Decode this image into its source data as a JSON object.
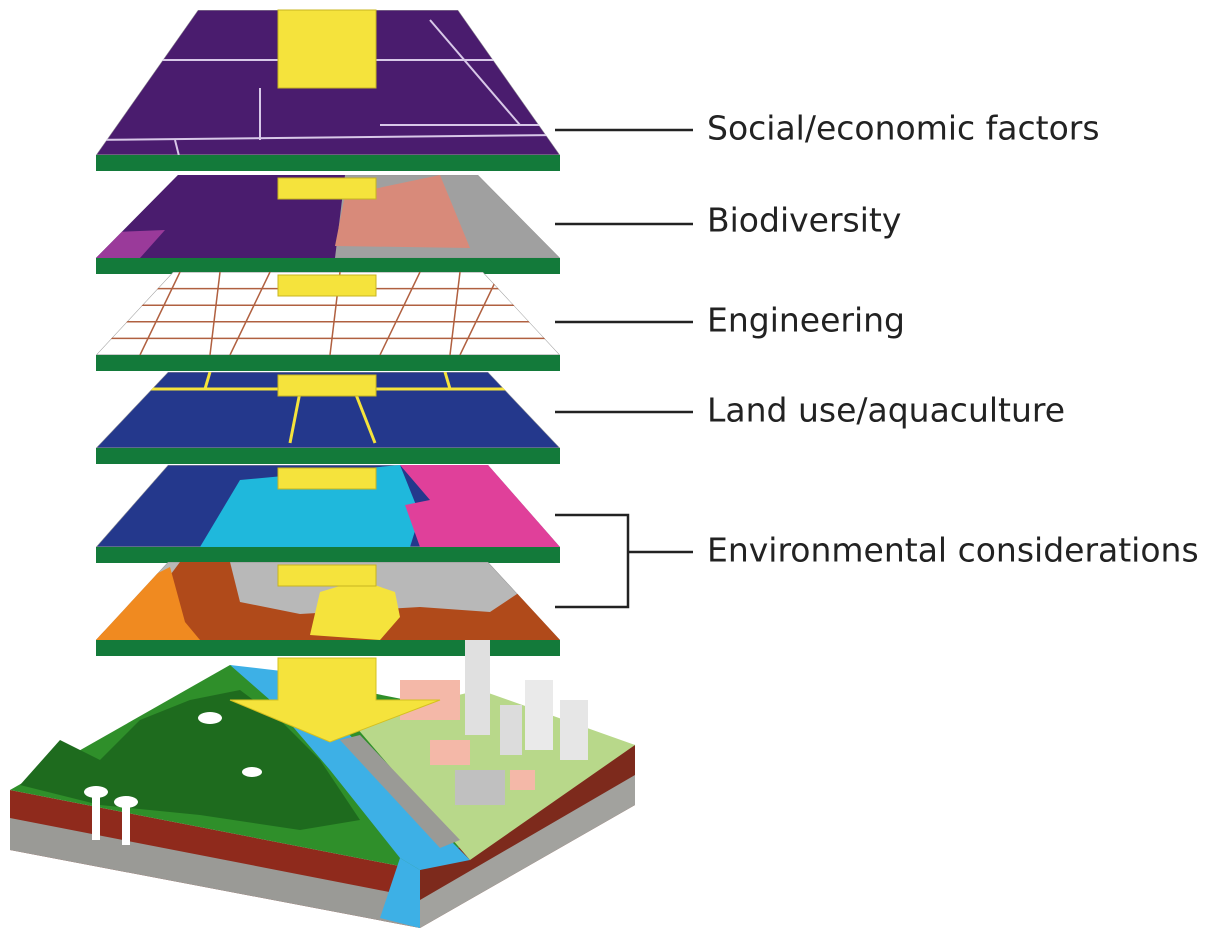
{
  "labels": [
    "Social/economic factors",
    "Biodiversity",
    "Engineering",
    "Land use/aquaculture",
    "Environmental considerations"
  ]
}
